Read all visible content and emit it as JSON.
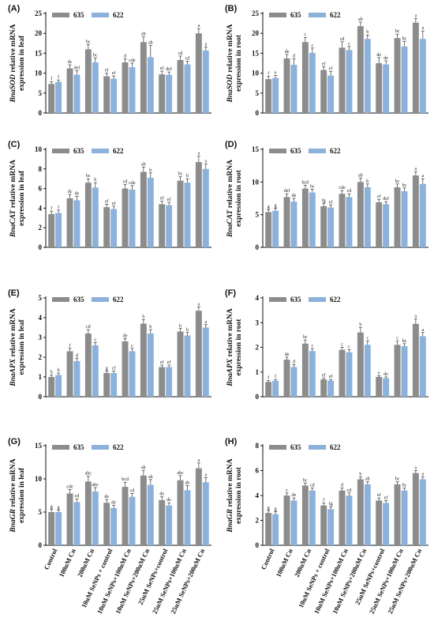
{
  "colors": {
    "s635": "#8c8c8c",
    "s622": "#8cb1db",
    "axis": "#111111",
    "err": "#333333"
  },
  "categories": [
    "Control",
    "100uM Cu",
    "200uM Cu",
    "10uM SeNPs + control",
    "10uM SeNPs+100uM Cu",
    "10uM SeNPs+200uM Cu",
    "25uM SeNPs+control",
    "25uM SeNPs+100uM Cu",
    "25uM SeNPs+200uM Cu"
  ],
  "legend": [
    "635",
    "622"
  ],
  "chart_data": [
    {
      "type": "bar",
      "panel": "(A)",
      "ylabel_gene": "BnaSOD",
      "ylabel_rest": " relative mRNA",
      "ylabel2": "expression in leaf",
      "ylim": [
        0,
        25
      ],
      "yticks": [
        0,
        5,
        10,
        15,
        20,
        25
      ],
      "series": [
        {
          "name": "635",
          "values": [
            7.3,
            11.2,
            16.0,
            9.2,
            12.7,
            17.8,
            9.7,
            13.3,
            20.0
          ],
          "errors": [
            0.6,
            0.9,
            1.2,
            0.8,
            0.9,
            1.3,
            0.8,
            1.0,
            1.2
          ],
          "labels": [
            "f",
            "dc",
            "bc",
            "ef",
            "d",
            "ab",
            "ef",
            "cd",
            "a"
          ]
        },
        {
          "name": "622",
          "values": [
            7.8,
            9.6,
            12.7,
            8.6,
            11.5,
            14.0,
            9.6,
            12.2,
            15.7
          ],
          "errors": [
            0.5,
            1.0,
            1.1,
            0.7,
            1.0,
            3.0,
            0.7,
            0.8,
            0.9
          ],
          "labels": [
            "f",
            "def",
            "bc",
            "ef",
            "cde",
            "ab",
            "def",
            "cd",
            "a"
          ]
        }
      ]
    },
    {
      "type": "bar",
      "panel": "(B)",
      "ylabel_gene": "BnaSOD",
      "ylabel_rest": " relative mRNA",
      "ylabel2": "expression in root",
      "ylim": [
        0,
        25
      ],
      "yticks": [
        0,
        5,
        10,
        15,
        20,
        25
      ],
      "series": [
        {
          "name": "635",
          "values": [
            8.5,
            13.7,
            17.8,
            10.8,
            16.4,
            21.8,
            12.5,
            18.8,
            22.7
          ],
          "errors": [
            0.7,
            1.0,
            1.2,
            0.8,
            1.5,
            1.0,
            1.4,
            1.0,
            1.0
          ],
          "labels": [
            "f",
            "de",
            "c",
            "ef",
            "cd",
            "ab",
            "de",
            "bc",
            "a"
          ]
        },
        {
          "name": "622",
          "values": [
            8.8,
            12.1,
            15.1,
            9.4,
            15.8,
            18.6,
            12.2,
            16.7,
            18.6
          ],
          "errors": [
            0.6,
            1.5,
            1.2,
            1.0,
            0.9,
            1.0,
            0.9,
            1.3,
            2.0
          ],
          "labels": [
            "e",
            "d",
            "c",
            "ef",
            "c",
            "b",
            "de",
            "bc",
            "a"
          ]
        }
      ]
    },
    {
      "type": "bar",
      "panel": "(C)",
      "ylabel_gene": "BnaCAT",
      "ylabel_rest": " relative mRNA",
      "ylabel2": "expression in leaf",
      "ylim": [
        0,
        10
      ],
      "yticks": [
        0,
        2,
        4,
        6,
        8,
        10
      ],
      "series": [
        {
          "name": "635",
          "values": [
            3.4,
            5.0,
            6.6,
            4.1,
            6.0,
            7.7,
            4.4,
            6.8,
            8.7
          ],
          "errors": [
            0.3,
            0.4,
            0.4,
            0.3,
            0.4,
            0.5,
            0.3,
            0.4,
            0.6
          ],
          "labels": [
            "f",
            "dc",
            "bc",
            "ef",
            "cd",
            "ab",
            "ef",
            "bc",
            "a"
          ]
        },
        {
          "name": "622",
          "values": [
            3.5,
            4.8,
            6.1,
            3.9,
            5.9,
            7.1,
            4.3,
            6.6,
            8.0
          ],
          "errors": [
            0.3,
            0.4,
            0.5,
            0.3,
            0.4,
            0.5,
            0.3,
            0.4,
            0.5
          ],
          "labels": [
            "f",
            "de",
            "b",
            "ef",
            "cde",
            "b",
            "ef",
            "b",
            "a"
          ]
        }
      ]
    },
    {
      "type": "bar",
      "panel": "(D)",
      "ylabel_gene": "BnaCAT",
      "ylabel_rest": " relative mRNA",
      "ylabel2": "expression in root",
      "ylim": [
        0,
        15
      ],
      "yticks": [
        0,
        5,
        10,
        15
      ],
      "series": [
        {
          "name": "635",
          "values": [
            5.4,
            7.7,
            9.0,
            6.3,
            8.2,
            10.0,
            6.9,
            9.2,
            11.0
          ],
          "errors": [
            0.4,
            0.5,
            0.5,
            0.4,
            0.5,
            0.6,
            0.4,
            0.5,
            0.6
          ],
          "labels": [
            "g",
            "def",
            "bcd",
            "fg",
            "cde",
            "ab",
            "ef",
            "bc",
            "a"
          ]
        },
        {
          "name": "622",
          "values": [
            5.6,
            7.0,
            8.4,
            6.1,
            7.7,
            9.2,
            6.6,
            8.6,
            9.7
          ],
          "errors": [
            0.4,
            0.5,
            0.5,
            0.4,
            0.5,
            0.5,
            0.4,
            0.5,
            0.8
          ],
          "labels": [
            "g",
            "de",
            "bc",
            "ef",
            "cd",
            "b",
            "def",
            "bc",
            "a"
          ]
        }
      ]
    },
    {
      "type": "bar",
      "panel": "(E)",
      "ylabel_gene": "BnaAPX",
      "ylabel_rest": " relative mRNA",
      "ylabel2": "expression in leaf",
      "ylim": [
        0,
        5
      ],
      "yticks": [
        0,
        1,
        2,
        3,
        4,
        5
      ],
      "series": [
        {
          "name": "635",
          "values": [
            1.0,
            2.3,
            3.2,
            1.2,
            2.8,
            3.7,
            1.5,
            3.3,
            4.35
          ],
          "errors": [
            0.1,
            0.15,
            0.2,
            0.1,
            0.15,
            0.2,
            0.1,
            0.15,
            0.2
          ],
          "labels": [
            "h",
            "f",
            "cd",
            "g",
            "de",
            "b",
            "ef",
            "b",
            "a"
          ]
        },
        {
          "name": "622",
          "values": [
            1.1,
            1.8,
            2.6,
            1.2,
            2.3,
            3.2,
            1.5,
            3.1,
            3.5
          ],
          "errors": [
            0.1,
            0.15,
            0.15,
            0.1,
            0.15,
            0.2,
            0.1,
            0.15,
            0.15
          ],
          "labels": [
            "h",
            "d",
            "c",
            "cf",
            "c",
            "b",
            "ef",
            "b",
            "a"
          ]
        }
      ]
    },
    {
      "type": "bar",
      "panel": "(F)",
      "ylabel_gene": "BnaAPX",
      "ylabel_rest": " relative mRNA",
      "ylabel2": "expression in root",
      "ylim": [
        0,
        4
      ],
      "yticks": [
        0,
        1,
        2,
        3,
        4
      ],
      "series": [
        {
          "name": "635",
          "values": [
            0.6,
            1.5,
            2.15,
            0.7,
            1.9,
            2.6,
            0.8,
            2.1,
            2.95
          ],
          "errors": [
            0.05,
            0.1,
            0.15,
            0.05,
            0.1,
            0.2,
            0.05,
            0.15,
            0.2
          ],
          "labels": [
            "f",
            "de",
            "bc",
            "ef",
            "c",
            "b",
            "e",
            "c",
            "a"
          ]
        },
        {
          "name": "622",
          "values": [
            0.65,
            1.2,
            1.85,
            0.65,
            1.8,
            2.1,
            0.75,
            2.05,
            2.45
          ],
          "errors": [
            0.05,
            0.1,
            0.1,
            0.05,
            0.1,
            0.15,
            0.05,
            0.1,
            0.15
          ],
          "labels": [
            "f",
            "d",
            "c",
            "ef",
            "c",
            "c",
            "de",
            "bc",
            "a"
          ]
        }
      ]
    },
    {
      "type": "bar",
      "panel": "(G)",
      "ylabel_gene": "BnaGR",
      "ylabel_rest": " relative mRNA",
      "ylabel2": "expression in leaf",
      "ylim": [
        0,
        15
      ],
      "yticks": [
        0,
        5,
        10,
        15
      ],
      "series": [
        {
          "name": "635",
          "values": [
            5.0,
            7.8,
            9.6,
            6.4,
            8.8,
            10.5,
            6.8,
            9.8,
            11.6
          ],
          "errors": [
            0.4,
            0.6,
            0.8,
            0.5,
            0.7,
            0.8,
            0.5,
            0.7,
            0.8
          ],
          "labels": [
            "g",
            "cde",
            "abc",
            "de",
            "bcd",
            "ab",
            "de",
            "abc",
            "a"
          ]
        },
        {
          "name": "622",
          "values": [
            5.0,
            6.5,
            8.1,
            5.6,
            7.3,
            9.1,
            6.0,
            8.3,
            9.5
          ],
          "errors": [
            0.3,
            0.5,
            0.6,
            0.4,
            0.5,
            0.8,
            0.4,
            0.7,
            0.7
          ],
          "labels": [
            "g",
            "cd",
            "abc",
            "de",
            "cd",
            "ab",
            "de",
            "ab",
            "a"
          ]
        }
      ]
    },
    {
      "type": "bar",
      "panel": "(H)",
      "ylabel_gene": "BnaGR",
      "ylabel_rest": " relative mRNA",
      "ylabel2": "expression in root",
      "ylim": [
        0,
        8
      ],
      "yticks": [
        0,
        2,
        4,
        6,
        8
      ],
      "series": [
        {
          "name": "635",
          "values": [
            2.6,
            4.0,
            4.8,
            3.2,
            4.4,
            5.3,
            3.6,
            4.9,
            5.8
          ],
          "errors": [
            0.2,
            0.2,
            0.2,
            0.2,
            0.2,
            0.2,
            0.2,
            0.2,
            0.2
          ],
          "labels": [
            "g",
            "c",
            "bc",
            "f",
            "d",
            "b",
            "ef",
            "bc",
            "a"
          ]
        },
        {
          "name": "622",
          "values": [
            2.5,
            3.6,
            4.4,
            2.9,
            4.0,
            4.9,
            3.4,
            4.4,
            5.3
          ],
          "errors": [
            0.2,
            0.2,
            0.2,
            0.2,
            0.2,
            0.2,
            0.2,
            0.2,
            0.2
          ],
          "labels": [
            "g",
            "de",
            "cd",
            "fg",
            "cd",
            "ab",
            "ef",
            "bc",
            "a"
          ]
        }
      ]
    }
  ]
}
